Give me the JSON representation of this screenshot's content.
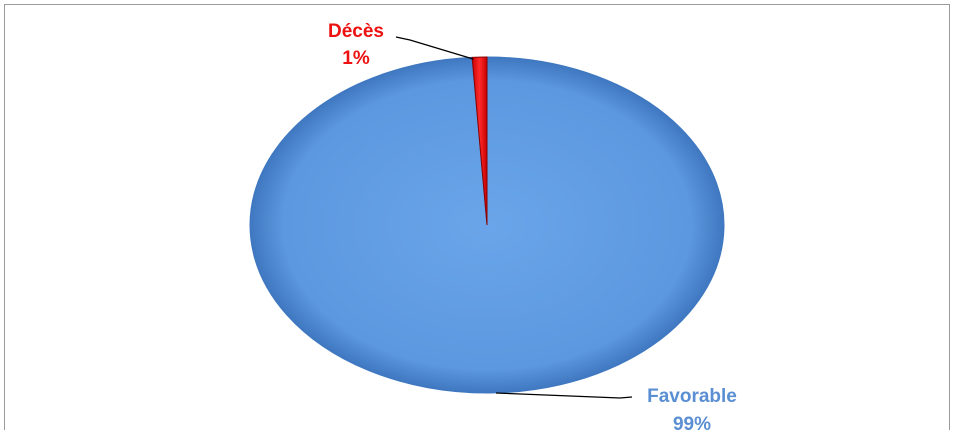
{
  "chart_data": {
    "type": "pie",
    "title": "",
    "categories": [
      "Favorable",
      "Décès"
    ],
    "values": [
      99,
      1
    ],
    "value_labels": [
      "99%",
      "1%"
    ],
    "colors": [
      "#5b97df",
      "#f01616"
    ],
    "label_colors": [
      "#5b8fd3",
      "#ee1111"
    ],
    "legend": "none",
    "style": "3d"
  }
}
